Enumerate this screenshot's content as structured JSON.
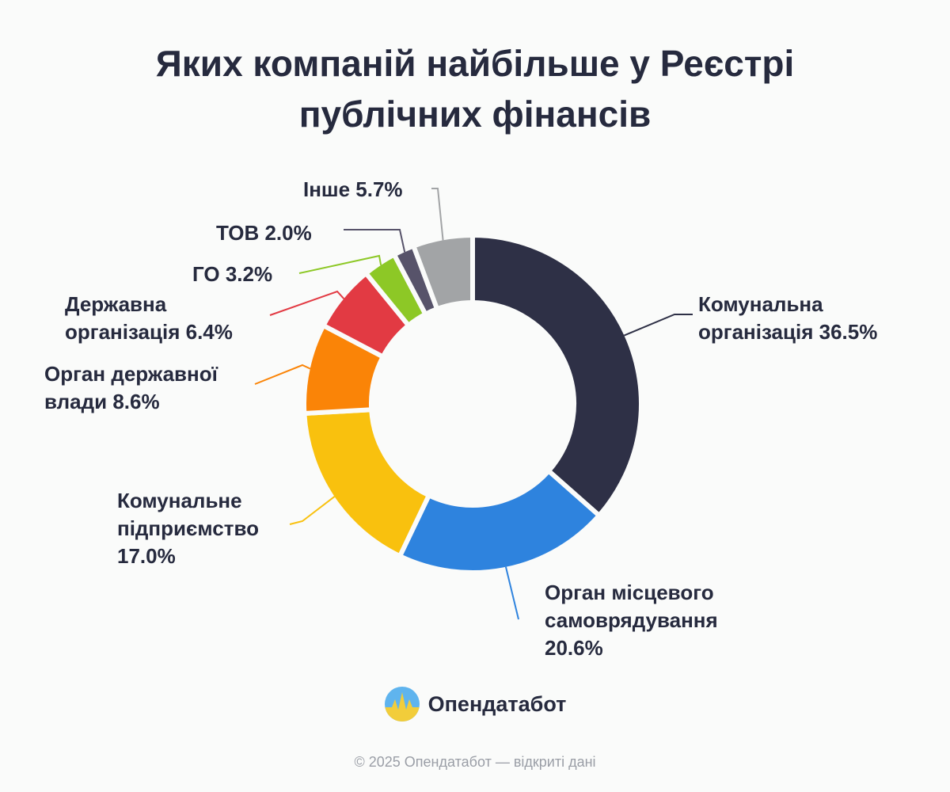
{
  "title": {
    "line1": "Яких компаній найбільше у Реєстрі",
    "line2": "публічних фінансів"
  },
  "chart_data": {
    "type": "pie",
    "variant": "donut",
    "slices": [
      {
        "label": "Комунальна організація",
        "value": 36.5,
        "color": "#2e3046",
        "label_lines": [
          "Комунальна",
          "організація 36.5%"
        ]
      },
      {
        "label": "Орган місцевого самоврядування",
        "value": 20.6,
        "color": "#2e83de",
        "label_lines": [
          "Орган місцевого",
          "самоврядування",
          "20.6%"
        ]
      },
      {
        "label": "Комунальне підприємство",
        "value": 17.0,
        "color": "#f9c10e",
        "label_lines": [
          "Комунальне",
          "підприємство",
          "17.0%"
        ]
      },
      {
        "label": "Орган державної влади",
        "value": 8.6,
        "color": "#fa8407",
        "label_lines": [
          "Орган державної",
          "влади 8.6%"
        ]
      },
      {
        "label": "Державна організація",
        "value": 6.4,
        "color": "#e23a43",
        "label_lines": [
          "Державна",
          "організація 6.4%"
        ]
      },
      {
        "label": "ГО",
        "value": 3.2,
        "color": "#8dc826",
        "label_lines": [
          "ГО 3.2%"
        ]
      },
      {
        "label": "ТОВ",
        "value": 2.0,
        "color": "#57536a",
        "label_lines": [
          "ТОВ 2.0%"
        ]
      },
      {
        "label": "Інше",
        "value": 5.7,
        "color": "#a2a4a6",
        "label_lines": [
          "Інше 5.7%"
        ]
      }
    ],
    "start_angle_deg": 0,
    "direction": "clockwise",
    "legend": "none"
  },
  "brand": {
    "name": "Опендатабот",
    "logo_icon": "opendatabot-logo-icon",
    "logo_colors": [
      "#5fb4ee",
      "#f2cd3a"
    ]
  },
  "footer": "© 2025 Опендатабот — відкриті дані"
}
